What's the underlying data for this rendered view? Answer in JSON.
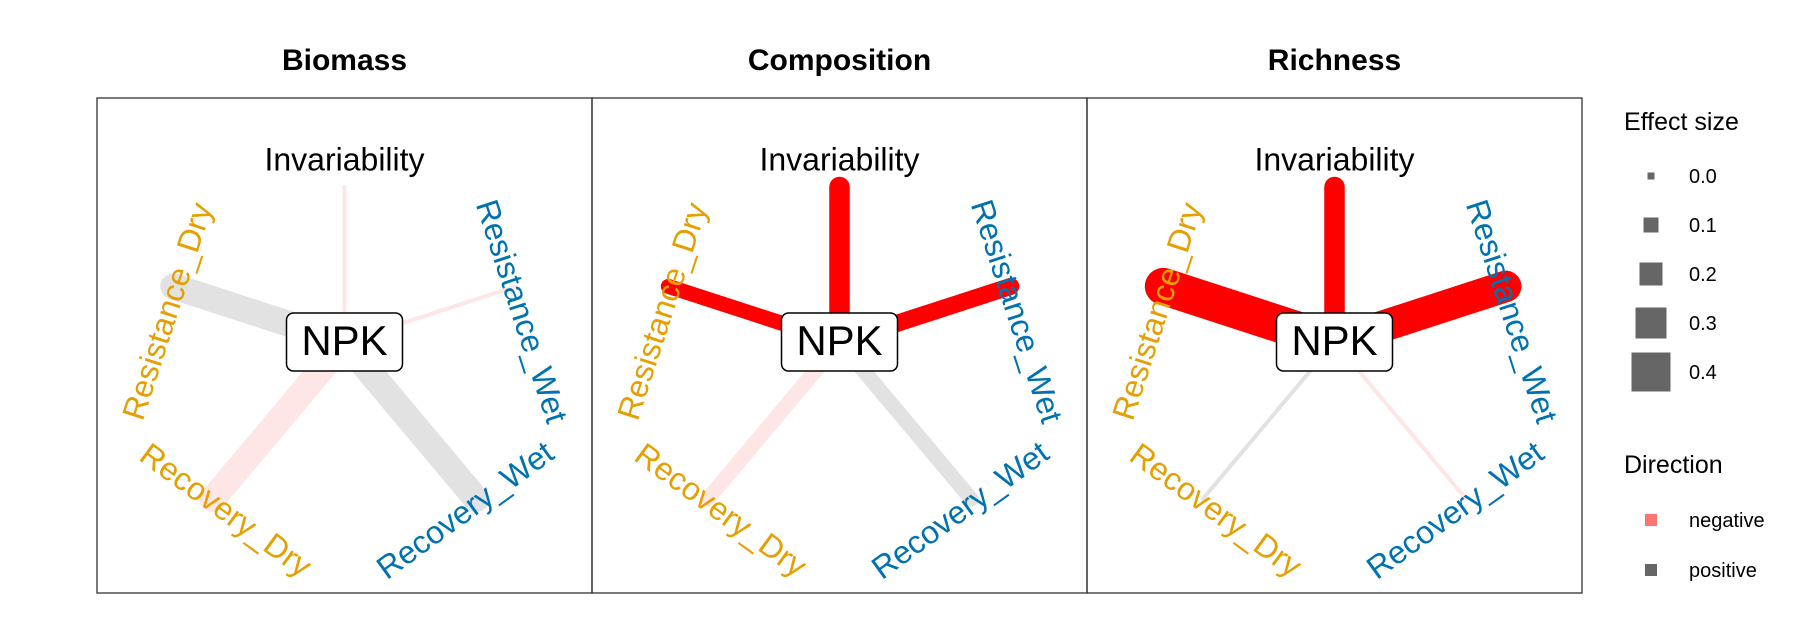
{
  "chart_data": {
    "type": "network",
    "center_node": "NPK",
    "axes": [
      {
        "name": "Invariability",
        "color": "#000000"
      },
      {
        "name": "Resistance_Wet",
        "color": "#0072B2"
      },
      {
        "name": "Recovery_Wet",
        "color": "#0072B2"
      },
      {
        "name": "Recovery_Dry",
        "color": "#E69F00"
      },
      {
        "name": "Resistance_Dry",
        "color": "#E69F00"
      }
    ],
    "panels": [
      {
        "title": "Biomass",
        "edges": [
          {
            "to": "Invariability",
            "effect_size": 0.0,
            "direction": "negative",
            "significant": false
          },
          {
            "to": "Resistance_Wet",
            "effect_size": 0.0,
            "direction": "negative",
            "significant": false
          },
          {
            "to": "Recovery_Wet",
            "effect_size": 0.2,
            "direction": "positive",
            "significant": false
          },
          {
            "to": "Recovery_Dry",
            "effect_size": 0.2,
            "direction": "negative",
            "significant": false
          },
          {
            "to": "Resistance_Dry",
            "effect_size": 0.2,
            "direction": "positive",
            "significant": false
          }
        ]
      },
      {
        "title": "Composition",
        "edges": [
          {
            "to": "Invariability",
            "effect_size": 0.15,
            "direction": "negative",
            "significant": true
          },
          {
            "to": "Resistance_Wet",
            "effect_size": 0.12,
            "direction": "negative",
            "significant": true
          },
          {
            "to": "Recovery_Wet",
            "effect_size": 0.1,
            "direction": "positive",
            "significant": false
          },
          {
            "to": "Recovery_Dry",
            "effect_size": 0.1,
            "direction": "negative",
            "significant": false
          },
          {
            "to": "Resistance_Dry",
            "effect_size": 0.1,
            "direction": "negative",
            "significant": true
          }
        ]
      },
      {
        "title": "Richness",
        "edges": [
          {
            "to": "Invariability",
            "effect_size": 0.15,
            "direction": "negative",
            "significant": true
          },
          {
            "to": "Resistance_Wet",
            "effect_size": 0.25,
            "direction": "negative",
            "significant": true
          },
          {
            "to": "Recovery_Wet",
            "effect_size": 0.0,
            "direction": "negative",
            "significant": false
          },
          {
            "to": "Recovery_Dry",
            "effect_size": 0.0,
            "direction": "positive",
            "significant": false
          },
          {
            "to": "Resistance_Dry",
            "effect_size": 0.3,
            "direction": "negative",
            "significant": true
          }
        ]
      }
    ],
    "legend": {
      "effect_size": {
        "title": "Effect size",
        "values": [
          "0.0",
          "0.1",
          "0.2",
          "0.3",
          "0.4"
        ]
      },
      "direction": {
        "title": "Direction",
        "entries": [
          {
            "label": "negative",
            "color": "#F8766D"
          },
          {
            "label": "positive",
            "color": "#666666"
          }
        ]
      }
    },
    "colors": {
      "negative_significant": "#FF0000",
      "negative_nonsignificant": "#FFE6E6",
      "positive_nonsignificant": "#E2E2E2",
      "positive_significant": "#666666"
    }
  }
}
